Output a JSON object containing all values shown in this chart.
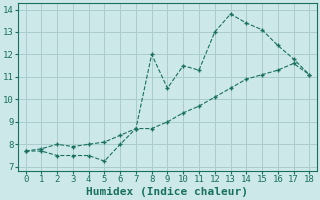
{
  "line1_x": [
    0,
    1,
    2,
    3,
    4,
    5,
    6,
    7,
    8,
    9,
    10,
    11,
    12,
    13,
    14,
    15,
    16,
    17,
    18
  ],
  "line1_y": [
    7.7,
    7.7,
    7.5,
    7.5,
    7.5,
    7.25,
    8.0,
    8.7,
    12.0,
    10.5,
    11.5,
    11.3,
    13.0,
    13.8,
    13.4,
    13.1,
    12.4,
    11.8,
    11.1
  ],
  "line2_x": [
    0,
    1,
    2,
    3,
    4,
    5,
    6,
    7,
    8,
    9,
    10,
    11,
    12,
    13,
    14,
    15,
    16,
    17,
    18
  ],
  "line2_y": [
    7.7,
    7.8,
    8.0,
    7.9,
    8.0,
    8.1,
    8.4,
    8.7,
    8.7,
    9.0,
    9.4,
    9.7,
    10.1,
    10.5,
    10.9,
    11.1,
    11.3,
    11.6,
    11.1
  ],
  "line_color": "#1a7060",
  "bg_color": "#cce8e8",
  "grid_color": "#aacccc",
  "xlabel": "Humidex (Indice chaleur)",
  "xlabel_fontsize": 8,
  "xlim": [
    -0.5,
    18.5
  ],
  "ylim": [
    6.8,
    14.3
  ],
  "xticks": [
    0,
    1,
    2,
    3,
    4,
    5,
    6,
    7,
    8,
    9,
    10,
    11,
    12,
    13,
    14,
    15,
    16,
    17,
    18
  ],
  "yticks": [
    7,
    8,
    9,
    10,
    11,
    12,
    13,
    14
  ]
}
